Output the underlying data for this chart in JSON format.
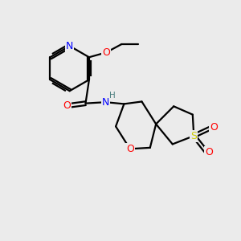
{
  "bg_color": "#ebebeb",
  "bond_color": "#000000",
  "atom_colors": {
    "N": "#0000ff",
    "O": "#ff0000",
    "S": "#cccc00",
    "C": "#000000",
    "H": "#4d8080"
  },
  "lw": 1.6
}
